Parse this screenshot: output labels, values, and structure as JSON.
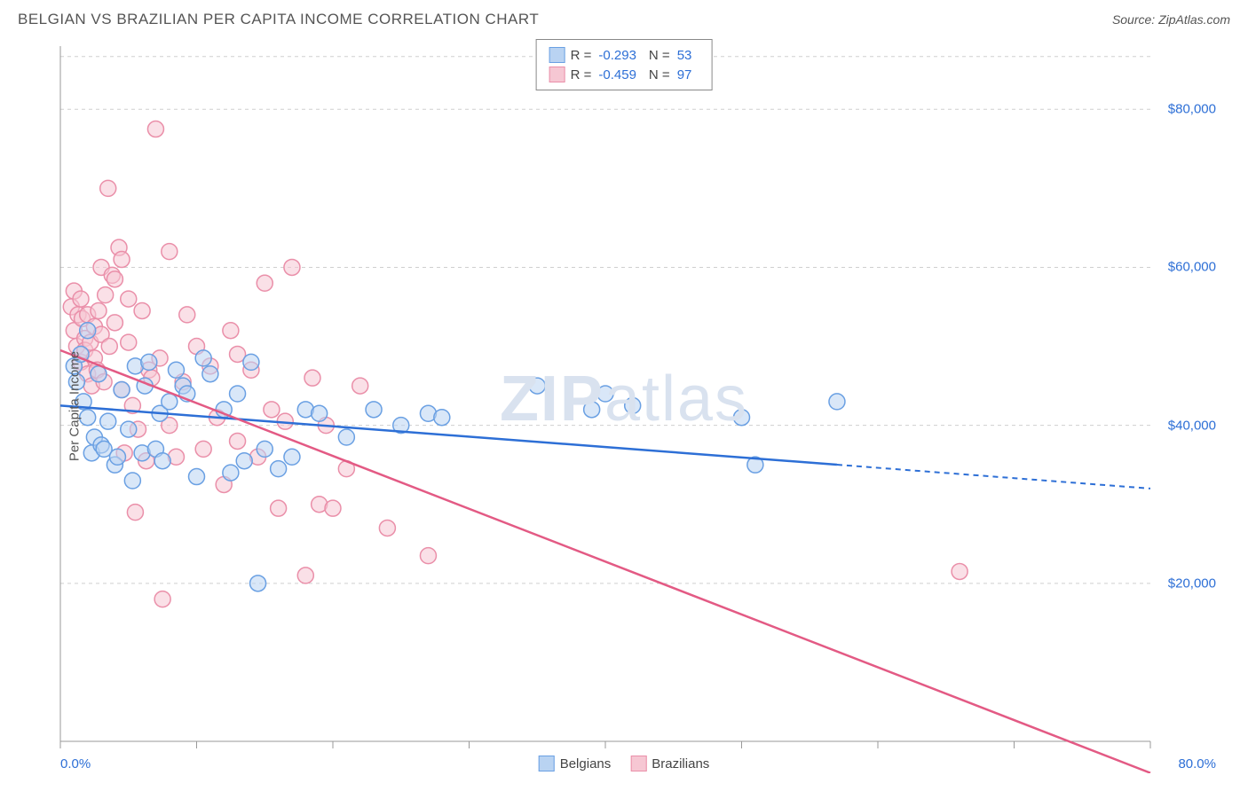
{
  "header": {
    "title": "BELGIAN VS BRAZILIAN PER CAPITA INCOME CORRELATION CHART",
    "source": "Source: ZipAtlas.com"
  },
  "watermark": {
    "bold": "ZIP",
    "light": "atlas"
  },
  "chart": {
    "type": "scatter",
    "ylabel": "Per Capita Income",
    "xlim": [
      0,
      80
    ],
    "ylim": [
      0,
      88000
    ],
    "xtick_pct": [
      0,
      10,
      20,
      30,
      40,
      50,
      60,
      70,
      80
    ],
    "yticks": [
      20000,
      40000,
      60000,
      80000
    ],
    "ytick_labels": [
      "$20,000",
      "$40,000",
      "$60,000",
      "$80,000"
    ],
    "xlab_left": "0.0%",
    "xlab_right": "80.0%",
    "grid_color": "#cfcfcf",
    "axis_color": "#999",
    "background_color": "#ffffff",
    "marker_radius": 9,
    "marker_opacity": 0.55,
    "series": [
      {
        "name": "Belgians",
        "color_fill": "#b9d3f2",
        "color_stroke": "#6aa0e3",
        "line_color": "#2d6fd6",
        "R": "-0.293",
        "N": "53",
        "trend": {
          "x1": 0,
          "y1": 42500,
          "x2": 80,
          "y2": 32000,
          "solid_until_x": 57
        },
        "points": [
          [
            1,
            47500
          ],
          [
            1.2,
            45500
          ],
          [
            1.5,
            49000
          ],
          [
            1.7,
            43000
          ],
          [
            2,
            52000
          ],
          [
            2,
            41000
          ],
          [
            2.3,
            36500
          ],
          [
            2.5,
            38500
          ],
          [
            2.8,
            46500
          ],
          [
            3,
            37500
          ],
          [
            3.2,
            37000
          ],
          [
            3.5,
            40500
          ],
          [
            4,
            35000
          ],
          [
            4.2,
            36000
          ],
          [
            4.5,
            44500
          ],
          [
            5,
            39500
          ],
          [
            5.3,
            33000
          ],
          [
            5.5,
            47500
          ],
          [
            6,
            36500
          ],
          [
            6.2,
            45000
          ],
          [
            6.5,
            48000
          ],
          [
            7,
            37000
          ],
          [
            7.3,
            41500
          ],
          [
            7.5,
            35500
          ],
          [
            8,
            43000
          ],
          [
            8.5,
            47000
          ],
          [
            9,
            45000
          ],
          [
            9.3,
            44000
          ],
          [
            10,
            33500
          ],
          [
            10.5,
            48500
          ],
          [
            11,
            46500
          ],
          [
            12,
            42000
          ],
          [
            12.5,
            34000
          ],
          [
            13,
            44000
          ],
          [
            13.5,
            35500
          ],
          [
            14,
            48000
          ],
          [
            14.5,
            20000
          ],
          [
            15,
            37000
          ],
          [
            16,
            34500
          ],
          [
            17,
            36000
          ],
          [
            18,
            42000
          ],
          [
            19,
            41500
          ],
          [
            21,
            38500
          ],
          [
            23,
            42000
          ],
          [
            25,
            40000
          ],
          [
            27,
            41500
          ],
          [
            28,
            41000
          ],
          [
            35,
            45000
          ],
          [
            39,
            42000
          ],
          [
            40,
            44000
          ],
          [
            42,
            42500
          ],
          [
            50,
            41000
          ],
          [
            51,
            35000
          ],
          [
            57,
            43000
          ]
        ]
      },
      {
        "name": "Brazilians",
        "color_fill": "#f6c7d3",
        "color_stroke": "#ea8fa9",
        "line_color": "#e35a84",
        "R": "-0.459",
        "N": "97",
        "trend": {
          "x1": 0,
          "y1": 49500,
          "x2": 80,
          "y2": -4000,
          "solid_until_x": 80
        },
        "points": [
          [
            0.8,
            55000
          ],
          [
            1,
            52000
          ],
          [
            1,
            57000
          ],
          [
            1.2,
            50000
          ],
          [
            1.3,
            54000
          ],
          [
            1.5,
            48000
          ],
          [
            1.5,
            56000
          ],
          [
            1.6,
            53500
          ],
          [
            1.8,
            51000
          ],
          [
            1.8,
            49500
          ],
          [
            2,
            46500
          ],
          [
            2,
            54000
          ],
          [
            2.2,
            50500
          ],
          [
            2.3,
            45000
          ],
          [
            2.5,
            52500
          ],
          [
            2.5,
            48500
          ],
          [
            2.7,
            47000
          ],
          [
            2.8,
            54500
          ],
          [
            3,
            51500
          ],
          [
            3,
            60000
          ],
          [
            3.2,
            45500
          ],
          [
            3.3,
            56500
          ],
          [
            3.5,
            70000
          ],
          [
            3.6,
            50000
          ],
          [
            3.8,
            59000
          ],
          [
            4,
            53000
          ],
          [
            4,
            58500
          ],
          [
            4.3,
            62500
          ],
          [
            4.5,
            61000
          ],
          [
            4.5,
            44500
          ],
          [
            4.7,
            36500
          ],
          [
            5,
            50500
          ],
          [
            5,
            56000
          ],
          [
            5.3,
            42500
          ],
          [
            5.5,
            29000
          ],
          [
            5.7,
            39500
          ],
          [
            6,
            54500
          ],
          [
            6.3,
            35500
          ],
          [
            6.5,
            47000
          ],
          [
            6.7,
            46000
          ],
          [
            7,
            77500
          ],
          [
            7.3,
            48500
          ],
          [
            7.5,
            18000
          ],
          [
            8,
            40000
          ],
          [
            8,
            62000
          ],
          [
            8.5,
            36000
          ],
          [
            9,
            45500
          ],
          [
            9.3,
            54000
          ],
          [
            10,
            50000
          ],
          [
            10.5,
            37000
          ],
          [
            11,
            47500
          ],
          [
            11.5,
            41000
          ],
          [
            12,
            32500
          ],
          [
            12.5,
            52000
          ],
          [
            13,
            38000
          ],
          [
            13,
            49000
          ],
          [
            14,
            47000
          ],
          [
            14.5,
            36000
          ],
          [
            15,
            58000
          ],
          [
            15.5,
            42000
          ],
          [
            16,
            29500
          ],
          [
            16.5,
            40500
          ],
          [
            17,
            60000
          ],
          [
            18,
            21000
          ],
          [
            18.5,
            46000
          ],
          [
            19,
            30000
          ],
          [
            19.5,
            40000
          ],
          [
            20,
            29500
          ],
          [
            21,
            34500
          ],
          [
            22,
            45000
          ],
          [
            24,
            27000
          ],
          [
            27,
            23500
          ],
          [
            66,
            21500
          ]
        ]
      }
    ],
    "legend_bottom": [
      {
        "label": "Belgians",
        "fill": "#b9d3f2",
        "stroke": "#6aa0e3"
      },
      {
        "label": "Brazilians",
        "fill": "#f6c7d3",
        "stroke": "#ea8fa9"
      }
    ]
  }
}
